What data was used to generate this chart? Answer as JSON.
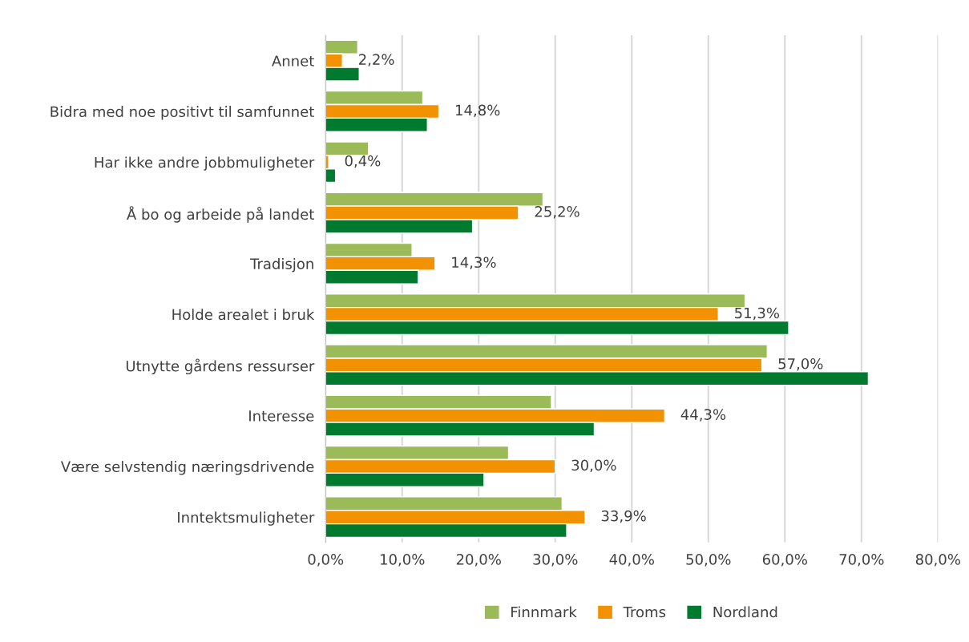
{
  "chart_data": {
    "type": "bar",
    "orientation": "horizontal",
    "categories": [
      "Annet",
      "Bidra med noe positivt til samfunnet",
      "Har ikke andre jobbmuligheter",
      "Å bo og arbeide på landet",
      "Tradisjon",
      "Holde arealet i bruk",
      "Utnytte gårdens ressurser",
      "Interesse",
      "Være selvstendig næringsdrivende",
      "Inntektsmuligheter"
    ],
    "series": [
      {
        "name": "Finnmark",
        "color": "#9bbb59",
        "values": [
          4.2,
          12.7,
          5.6,
          28.4,
          11.3,
          54.8,
          57.7,
          29.5,
          23.9,
          30.9
        ]
      },
      {
        "name": "Troms",
        "color": "#f39200",
        "values": [
          2.2,
          14.8,
          0.4,
          25.2,
          14.3,
          51.3,
          57.0,
          44.3,
          30.0,
          33.9
        ],
        "value_labels": [
          "2,2%",
          "14,8%",
          "0,4%",
          "25,2%",
          "14,3%",
          "51,3%",
          "57,0%",
          "44,3%",
          "30,0%",
          "33,9%"
        ]
      },
      {
        "name": "Nordland",
        "color": "#007a2e",
        "values": [
          4.4,
          13.3,
          1.3,
          19.2,
          12.1,
          60.5,
          70.9,
          35.1,
          20.7,
          31.5
        ]
      }
    ],
    "xlim": [
      0,
      80
    ],
    "xticks": [
      {
        "value": 0,
        "label": "0,0%"
      },
      {
        "value": 10,
        "label": "10,0%"
      },
      {
        "value": 20,
        "label": "20,0%"
      },
      {
        "value": 30,
        "label": "30,0%"
      },
      {
        "value": 40,
        "label": "40,0%"
      },
      {
        "value": 50,
        "label": "50,0%"
      },
      {
        "value": 60,
        "label": "60,0%"
      },
      {
        "value": 70,
        "label": "70,0%"
      },
      {
        "value": 80,
        "label": "80,0%"
      }
    ],
    "grid": "x",
    "legend": "bottom"
  }
}
